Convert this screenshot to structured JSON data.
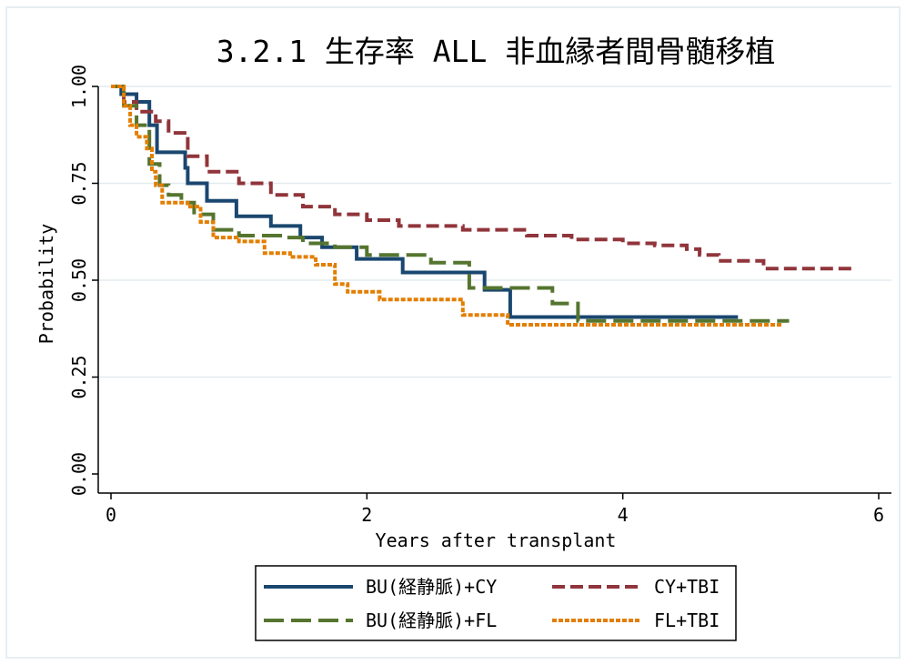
{
  "chart_data": {
    "type": "line",
    "title": "3.2.1 生存率 ALL 非血縁者間骨髄移植",
    "xlabel": "Years after transplant",
    "ylabel": "Probability",
    "xlim": [
      0,
      6
    ],
    "ylim": [
      0,
      1
    ],
    "x_ticks": [
      "0",
      "2",
      "4",
      "6"
    ],
    "y_ticks": [
      "0.00",
      "0.25",
      "0.50",
      "0.75",
      "1.00"
    ],
    "grid": "horizontal",
    "legend_position": "bottom",
    "series": [
      {
        "name": "BU(経静脈)+CY",
        "color": "#1a476f",
        "dash": "solid",
        "points": [
          [
            0,
            1.0
          ],
          [
            0.08,
            0.98
          ],
          [
            0.2,
            0.96
          ],
          [
            0.3,
            0.9
          ],
          [
            0.36,
            0.83
          ],
          [
            0.58,
            0.79
          ],
          [
            0.6,
            0.75
          ],
          [
            0.75,
            0.705
          ],
          [
            0.98,
            0.665
          ],
          [
            1.25,
            0.64
          ],
          [
            1.48,
            0.61
          ],
          [
            1.65,
            0.585
          ],
          [
            1.92,
            0.555
          ],
          [
            2.28,
            0.52
          ],
          [
            2.92,
            0.475
          ],
          [
            3.12,
            0.405
          ],
          [
            4.9,
            0.405
          ]
        ]
      },
      {
        "name": "CY+TBI",
        "color": "#90353b",
        "dash": "dashed",
        "points": [
          [
            0,
            1.0
          ],
          [
            0.1,
            0.96
          ],
          [
            0.2,
            0.935
          ],
          [
            0.35,
            0.91
          ],
          [
            0.45,
            0.88
          ],
          [
            0.6,
            0.82
          ],
          [
            0.75,
            0.78
          ],
          [
            1.0,
            0.75
          ],
          [
            1.25,
            0.72
          ],
          [
            1.5,
            0.69
          ],
          [
            1.75,
            0.67
          ],
          [
            2.0,
            0.655
          ],
          [
            2.25,
            0.64
          ],
          [
            2.75,
            0.63
          ],
          [
            3.25,
            0.615
          ],
          [
            3.6,
            0.605
          ],
          [
            4.0,
            0.595
          ],
          [
            4.25,
            0.59
          ],
          [
            4.5,
            0.58
          ],
          [
            4.6,
            0.565
          ],
          [
            4.75,
            0.55
          ],
          [
            5.0,
            0.55
          ],
          [
            5.1,
            0.53
          ],
          [
            5.8,
            0.53
          ]
        ]
      },
      {
        "name": "BU(経静脈)+FL",
        "color": "#55752f",
        "dash": "longdash",
        "points": [
          [
            0,
            1.0
          ],
          [
            0.1,
            0.95
          ],
          [
            0.2,
            0.9
          ],
          [
            0.3,
            0.8
          ],
          [
            0.38,
            0.745
          ],
          [
            0.45,
            0.72
          ],
          [
            0.55,
            0.7
          ],
          [
            0.65,
            0.67
          ],
          [
            0.8,
            0.63
          ],
          [
            1.0,
            0.615
          ],
          [
            1.35,
            0.61
          ],
          [
            1.5,
            0.595
          ],
          [
            1.75,
            0.585
          ],
          [
            2.0,
            0.565
          ],
          [
            2.5,
            0.545
          ],
          [
            2.8,
            0.48
          ],
          [
            3.45,
            0.44
          ],
          [
            3.65,
            0.395
          ],
          [
            5.3,
            0.395
          ]
        ]
      },
      {
        "name": "FL+TBI",
        "color": "#e37e00",
        "dash": "dotted",
        "points": [
          [
            0,
            1.0
          ],
          [
            0.1,
            0.95
          ],
          [
            0.15,
            0.9
          ],
          [
            0.2,
            0.87
          ],
          [
            0.28,
            0.84
          ],
          [
            0.32,
            0.78
          ],
          [
            0.35,
            0.745
          ],
          [
            0.4,
            0.7
          ],
          [
            0.6,
            0.69
          ],
          [
            0.7,
            0.65
          ],
          [
            0.8,
            0.61
          ],
          [
            1.0,
            0.6
          ],
          [
            1.2,
            0.57
          ],
          [
            1.4,
            0.56
          ],
          [
            1.6,
            0.54
          ],
          [
            1.75,
            0.49
          ],
          [
            1.85,
            0.47
          ],
          [
            2.1,
            0.45
          ],
          [
            2.4,
            0.45
          ],
          [
            2.75,
            0.41
          ],
          [
            3.1,
            0.385
          ],
          [
            5.25,
            0.385
          ]
        ]
      }
    ]
  }
}
